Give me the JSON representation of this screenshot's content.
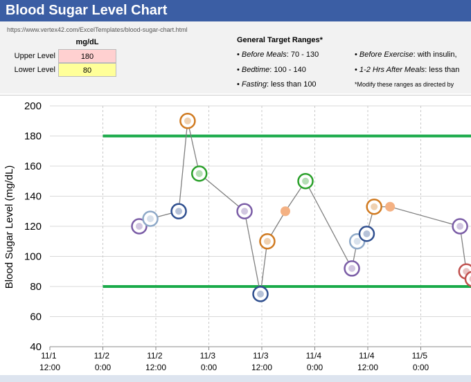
{
  "header": {
    "title": "Blood Sugar Level Chart",
    "url": "https://www.vertex42.com/ExcelTemplates/blood-sugar-chart.html"
  },
  "limits_table": {
    "unit": "mg/dL",
    "rows": [
      {
        "label": "Upper Level",
        "value": 180
      },
      {
        "label": "Lower Level",
        "value": 80
      }
    ]
  },
  "target_ranges": {
    "title": "General Target Ranges*",
    "items": [
      {
        "label": "Before Meals",
        "text": ": 70 - 130"
      },
      {
        "label": "Bedtime",
        "text": ": 100 - 140"
      },
      {
        "label": "Fasting",
        "text": ": less than 100"
      },
      {
        "label": "Before Exercise",
        "text": ": with insulin,"
      },
      {
        "label": "1-2 Hrs After Meals",
        "text": ": less than"
      }
    ],
    "note": "*Modify these ranges as directed by"
  },
  "chart_data": {
    "type": "line",
    "y_label": "Blood Sugar Level (mg/dL)",
    "x": [
      2.343,
      2.448,
      2.716,
      2.8,
      2.91,
      3.337,
      3.487,
      3.552,
      3.722,
      3.912,
      4.35,
      4.4,
      4.49,
      4.56,
      4.71,
      5.37,
      5.43,
      5.49
    ],
    "series": [
      {
        "name": "Blood Sugar",
        "color": "#7f7f7f",
        "values": [
          120,
          125,
          130,
          190,
          155,
          130,
          75,
          110,
          130,
          150,
          92,
          110,
          115,
          133,
          133,
          120,
          90,
          85
        ]
      }
    ],
    "marker_colors": [
      "#7a5ca6",
      "#8ea9c8",
      "#2f4f8f",
      "#d07a20",
      "#2aa02a",
      "#7a5ca6",
      "#2f4f8f",
      "#d07a20",
      "#f4b183",
      "#2aa02a",
      "#7a5ca6",
      "#8ea9c8",
      "#2f4f8f",
      "#d07a20",
      "#f4b183",
      "#7a5ca6",
      "#c0504d",
      "#c0504d"
    ],
    "markers": [
      "ring",
      "ring",
      "ring",
      "ring",
      "ring",
      "ring",
      "ring",
      "ring",
      "dot",
      "ring",
      "ring",
      "ring",
      "ring",
      "ring",
      "dot",
      "ring",
      "ring",
      "ring"
    ],
    "limit_color": "#1aaa4a",
    "xlim": [
      1.5,
      6.0
    ],
    "xticks": [
      {
        "value": 1.5,
        "label": "11/1 12:00"
      },
      {
        "value": 2,
        "label": "11/2 0:00"
      },
      {
        "value": 2.5,
        "label": "11/2 12:00"
      },
      {
        "value": 3,
        "label": "11/3 0:00"
      },
      {
        "value": 3.5,
        "label": "11/3 12:00"
      },
      {
        "value": 4,
        "label": "11/4 0:00"
      },
      {
        "value": 4.5,
        "label": "11/4 12:00"
      },
      {
        "value": 5,
        "label": "11/5 0:00"
      }
    ],
    "ylim": [
      40,
      200
    ],
    "yticks": [
      40,
      60,
      80,
      100,
      120,
      140,
      160,
      180,
      200
    ],
    "grid": true
  }
}
